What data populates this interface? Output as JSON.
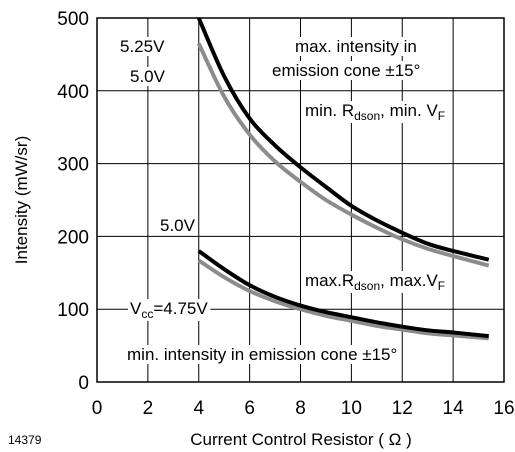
{
  "figure_id": "14379",
  "chart_data": {
    "type": "line",
    "xlabel": "Current Control Resistor ( Ω )",
    "ylabel": "Intensity (mW/sr)",
    "xlim": [
      0,
      16
    ],
    "ylim": [
      0,
      500
    ],
    "xticks": [
      0,
      2,
      4,
      6,
      8,
      10,
      12,
      14,
      16
    ],
    "yticks": [
      0,
      100,
      200,
      300,
      400,
      500
    ],
    "grid": true,
    "series": [
      {
        "name": "5.25V",
        "color": "#000000",
        "x": [
          4,
          5,
          6,
          7,
          8,
          9,
          10,
          11,
          12,
          13,
          14,
          15.4
        ],
        "y": [
          500,
          420,
          362,
          325,
          295,
          268,
          242,
          222,
          205,
          190,
          180,
          168
        ]
      },
      {
        "name": "5.0V",
        "color": "#8c8c8c",
        "x": [
          4,
          5,
          6,
          7,
          8,
          9,
          10,
          11,
          12,
          13,
          14,
          15.4
        ],
        "y": [
          465,
          392,
          340,
          303,
          275,
          250,
          230,
          212,
          196,
          183,
          173,
          160
        ]
      },
      {
        "name": "5.0V",
        "color": "#000000",
        "x": [
          4,
          5,
          6,
          7,
          8,
          9,
          10,
          11,
          12,
          13,
          14,
          15.4
        ],
        "y": [
          180,
          155,
          133,
          117,
          105,
          96,
          89,
          82,
          76,
          71,
          68,
          63
        ]
      },
      {
        "name": "Vcc=4.75V",
        "color": "#8c8c8c",
        "x": [
          4,
          5,
          6,
          7,
          8,
          9,
          10,
          11,
          12,
          13,
          14,
          15.4
        ],
        "y": [
          167,
          144,
          125,
          111,
          100,
          91,
          84,
          77,
          72,
          67,
          64,
          60
        ]
      }
    ],
    "annotations": {
      "label_5_25v": "5.25V",
      "label_5_0v_upper": "5.0V",
      "label_5_0v_lower": "5.0V",
      "vcc_prefix": "V",
      "vcc_sub": "cc",
      "vcc_value": "=4.75V",
      "max_intensity_line1": "max. intensity in",
      "max_intensity_line2": "emission cone ±15°",
      "min_r_prefix": "min. R",
      "min_r_sub": "dson",
      "min_r_mid": ", min. V",
      "min_r_sub2": "F",
      "max_r_prefix": "max.R",
      "max_r_sub": "dson",
      "max_r_mid": ", max.V",
      "max_r_sub2": "F",
      "min_intensity": "min. intensity in emission cone ±15°"
    }
  }
}
